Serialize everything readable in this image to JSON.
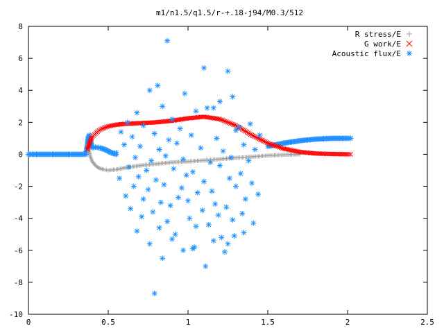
{
  "chart_data": {
    "type": "scatter",
    "title": "m1/n1.5/q1.5/r-+.18-j94/M0.3/512",
    "xlabel": "",
    "ylabel": "",
    "xlim": [
      0,
      2.5
    ],
    "ylim": [
      -10,
      8
    ],
    "x_ticks": [
      0,
      0.5,
      1,
      1.5,
      2,
      2.5
    ],
    "x_tick_labels": [
      "0",
      "0.5",
      "1",
      "1.5",
      "2",
      "2.5"
    ],
    "y_ticks": [
      -10,
      -8,
      -6,
      -4,
      -2,
      0,
      2,
      4,
      6,
      8
    ],
    "y_tick_labels": [
      "-10",
      "-8",
      "-6",
      "-4",
      "-2",
      "0",
      "2",
      "4",
      "6",
      "8"
    ],
    "grid": false,
    "legend_position": "top-right",
    "series": [
      {
        "name": "R stress/E",
        "marker": "plus",
        "color": "#a0a0a0",
        "x": [
          0.37,
          0.38,
          0.39,
          0.4,
          0.42,
          0.44,
          0.47,
          0.5,
          0.55,
          0.6,
          0.7,
          0.8,
          0.9,
          1.0,
          1.1,
          1.2,
          1.3,
          1.4,
          1.5,
          1.6,
          1.7
        ],
        "y": [
          0.6,
          0.2,
          -0.2,
          -0.45,
          -0.7,
          -0.85,
          -0.95,
          -1.0,
          -0.95,
          -0.85,
          -0.7,
          -0.6,
          -0.5,
          -0.45,
          -0.38,
          -0.3,
          -0.22,
          -0.15,
          -0.08,
          -0.03,
          0.0
        ]
      },
      {
        "name": "G work/E",
        "marker": "cross",
        "color": "#ff0000",
        "x": [
          0.37,
          0.38,
          0.39,
          0.4,
          0.42,
          0.45,
          0.5,
          0.55,
          0.6,
          0.7,
          0.8,
          0.9,
          1.0,
          1.1,
          1.2,
          1.3,
          1.4,
          1.5,
          1.6,
          1.7,
          1.8,
          1.9,
          2.0,
          2.02
        ],
        "y": [
          0.3,
          0.6,
          0.9,
          1.1,
          1.3,
          1.55,
          1.75,
          1.85,
          1.9,
          1.95,
          2.0,
          2.1,
          2.25,
          2.35,
          2.2,
          1.8,
          1.2,
          0.7,
          0.35,
          0.15,
          0.05,
          0.02,
          0.0,
          0.0
        ]
      },
      {
        "name": "Acoustic flux/E",
        "marker": "star",
        "color": "#1e90ff",
        "line_x": [
          0.0,
          0.1,
          0.2,
          0.3,
          0.36,
          0.37,
          0.375,
          0.38,
          0.39,
          0.4,
          0.42,
          0.45,
          0.48,
          0.5,
          0.52,
          0.55
        ],
        "line_y": [
          0.0,
          0.0,
          0.0,
          0.0,
          0.0,
          0.6,
          1.1,
          1.2,
          0.8,
          0.4,
          0.45,
          0.4,
          0.3,
          0.2,
          0.1,
          0.0
        ],
        "tail_x": [
          1.5,
          1.55,
          1.6,
          1.7,
          1.8,
          1.9,
          2.0,
          2.02
        ],
        "tail_y": [
          0.5,
          0.6,
          0.7,
          0.85,
          0.95,
          1.0,
          1.0,
          1.0
        ],
        "scatter_x": [
          0.87,
          0.81,
          1.1,
          1.25,
          0.76,
          0.84,
          0.98,
          1.2,
          1.28,
          1.12,
          0.68,
          0.9,
          1.05,
          1.16,
          0.62,
          0.72,
          0.95,
          1.32,
          1.39,
          0.58,
          0.65,
          0.79,
          0.88,
          1.02,
          1.18,
          1.3,
          1.45,
          0.6,
          0.7,
          0.82,
          0.93,
          1.08,
          1.22,
          1.35,
          1.42,
          0.55,
          0.67,
          0.77,
          0.86,
          0.97,
          1.14,
          1.27,
          1.38,
          0.63,
          0.74,
          0.91,
          1.03,
          1.2,
          1.33,
          0.57,
          0.69,
          0.8,
          0.99,
          1.1,
          1.26,
          1.4,
          0.66,
          0.75,
          0.85,
          0.96,
          1.06,
          1.15,
          1.3,
          1.44,
          0.61,
          0.72,
          0.83,
          0.94,
          1.0,
          1.17,
          1.24,
          1.36,
          0.64,
          0.78,
          0.89,
          1.09,
          1.19,
          1.34,
          1.41,
          0.71,
          0.87,
          1.01,
          1.13,
          1.28,
          0.68,
          0.82,
          0.92,
          1.05,
          1.21,
          1.35,
          0.76,
          0.9,
          1.04,
          1.16,
          1.29,
          0.84,
          0.97,
          1.11,
          1.23,
          0.79,
          1.03,
          1.25
        ],
        "scatter_y": [
          7.1,
          4.3,
          5.4,
          5.2,
          4.0,
          3.0,
          3.8,
          3.3,
          3.6,
          2.9,
          2.6,
          2.2,
          2.7,
          2.9,
          2.0,
          1.8,
          1.6,
          1.7,
          1.9,
          1.4,
          1.1,
          1.3,
          0.9,
          1.2,
          1.0,
          1.5,
          1.2,
          0.6,
          0.5,
          0.3,
          0.7,
          0.4,
          0.2,
          0.6,
          0.3,
          0.1,
          -0.2,
          -0.4,
          -0.1,
          -0.3,
          -0.5,
          -0.2,
          -0.4,
          -0.8,
          -1.0,
          -0.9,
          -1.1,
          -0.7,
          -1.2,
          -1.5,
          -1.4,
          -1.6,
          -1.3,
          -1.7,
          -1.5,
          -1.8,
          -2.0,
          -2.2,
          -1.9,
          -2.1,
          -2.4,
          -2.3,
          -2.0,
          -2.5,
          -2.6,
          -2.8,
          -3.0,
          -2.7,
          -2.9,
          -3.1,
          -3.3,
          -2.8,
          -3.4,
          -3.6,
          -3.2,
          -3.5,
          -3.8,
          -3.7,
          -4.3,
          -3.9,
          -4.2,
          -4.0,
          -4.4,
          -4.1,
          -4.8,
          -4.6,
          -5.0,
          -4.5,
          -5.2,
          -4.9,
          -5.6,
          -5.3,
          -5.8,
          -5.4,
          -5.1,
          -6.5,
          -6.0,
          -7.0,
          -6.1,
          -8.7,
          -5.9,
          -5.6
        ]
      }
    ]
  }
}
